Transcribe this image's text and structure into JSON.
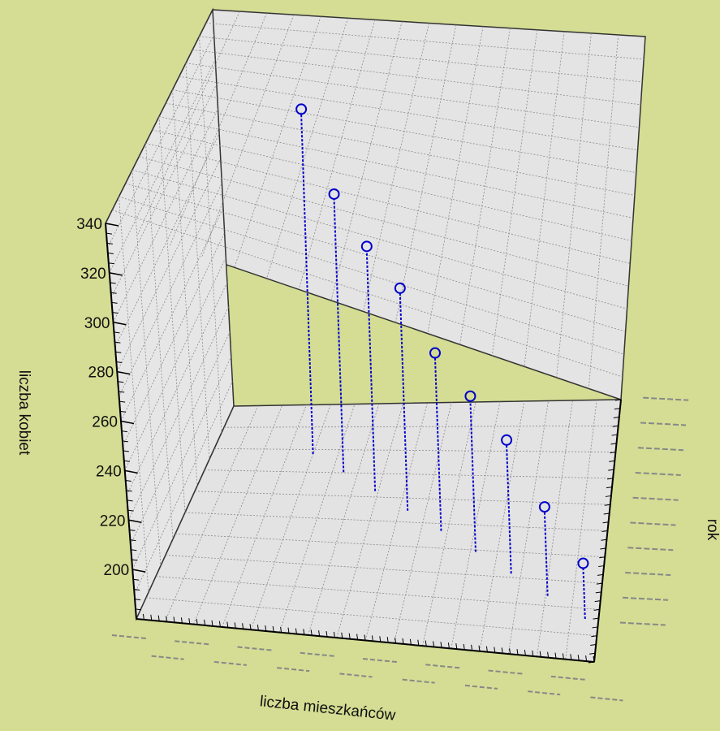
{
  "chart_data": {
    "type": "scatter",
    "subtype": "3d-scatter-with-drop-lines",
    "title": "",
    "xlabel": "liczba mieszkańców",
    "ylabel": "rok",
    "zlabel": "liczba kobiet",
    "zlim": [
      180,
      340
    ],
    "z_ticks": [
      "200",
      "220",
      "240",
      "260",
      "280",
      "300",
      "320",
      "340"
    ],
    "grid": true,
    "points_z": [
      335,
      305,
      290,
      280,
      260,
      250,
      240,
      220,
      205
    ],
    "marker_color": "#0000cc",
    "background_color": "#d4dd93",
    "pane_color": "#e4e4e4"
  }
}
